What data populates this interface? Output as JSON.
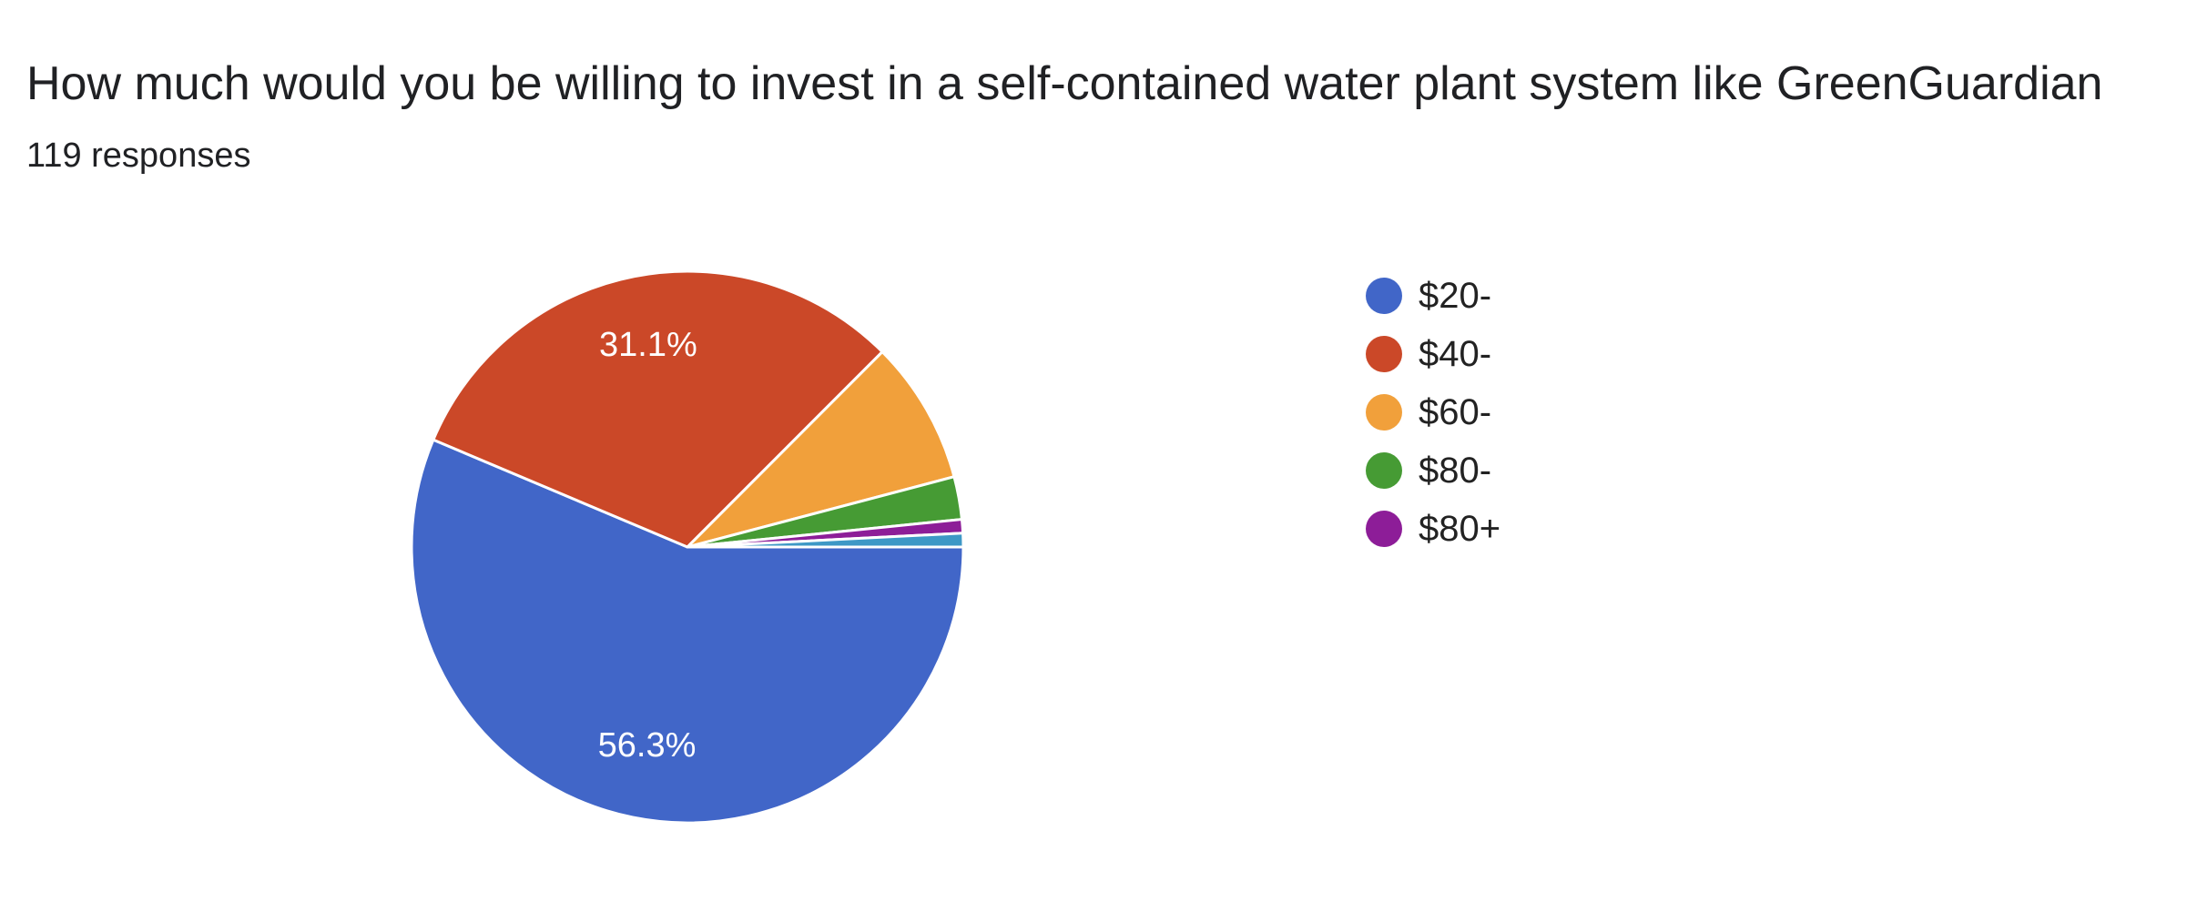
{
  "title": "How much would you be willing to invest in a self-contained water plant system like GreenGuardian",
  "subtitle": "119 responses",
  "chart_data": {
    "type": "pie",
    "title": "How much would you be willing to invest in a self-contained water plant system like GreenGuardian",
    "subtitle": "119 responses",
    "categories": [
      "$20-",
      "$40-",
      "$60-",
      "$80-",
      "$80+",
      ""
    ],
    "values": [
      56.3,
      31.1,
      8.4,
      2.5,
      0.8,
      0.8
    ],
    "data_labels": [
      "56.3%",
      "31.1%",
      "",
      "",
      "",
      ""
    ],
    "colors": [
      "#4166c8",
      "#cb4828",
      "#f1a03b",
      "#469b34",
      "#8d1d98",
      "#3e98c6"
    ],
    "legend": {
      "position": "right",
      "entries": [
        "$20-",
        "$40-",
        "$60-",
        "$80-",
        "$80+"
      ]
    },
    "start": "right, going clockwise",
    "slice_border_color": "#ffffff"
  }
}
